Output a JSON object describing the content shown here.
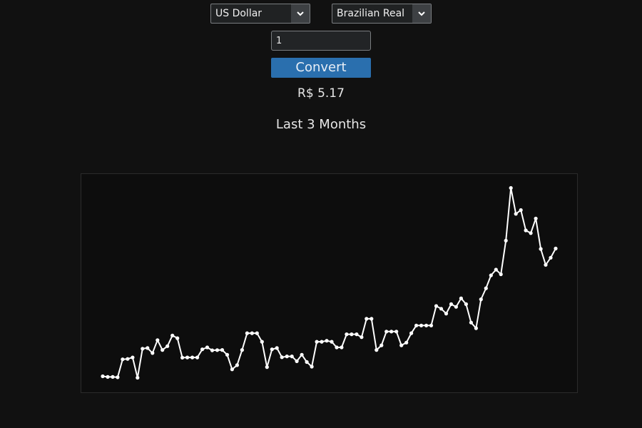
{
  "converter": {
    "from_currency": "US Dollar",
    "to_currency": "Brazilian Real",
    "amount": "1",
    "convert_label": "Convert",
    "result": "R$ 5.17",
    "icons": {
      "dropdown": "chevron-down-icon"
    }
  },
  "chart": {
    "heading": "Last 3 Months",
    "line_color": "#ffffff"
  },
  "chart_data": {
    "type": "line",
    "title": "Last 3 Months",
    "xlabel": "",
    "ylabel": "",
    "grid": false,
    "ylim": [
      0,
      100
    ],
    "series": [
      {
        "values": [
          5.3,
          5.0,
          5.0,
          4.8,
          13.4,
          13.6,
          14.3,
          4.6,
          18.5,
          18.8,
          16.4,
          22.6,
          17.9,
          19.7,
          24.8,
          23.5,
          14.2,
          14.3,
          14.3,
          14.3,
          18.2,
          19.1,
          17.7,
          17.8,
          17.9,
          15.6,
          8.6,
          10.6,
          17.9,
          25.9,
          25.9,
          25.9,
          21.8,
          9.7,
          18.2,
          18.8,
          14.4,
          14.8,
          14.8,
          12.5,
          15.6,
          12.1,
          9.9,
          21.8,
          21.8,
          22.3,
          21.8,
          19.1,
          19.1,
          25.4,
          25.4,
          25.4,
          24.0,
          32.8,
          32.8,
          17.9,
          20.1,
          26.7,
          26.7,
          26.7,
          20.1,
          21.4,
          25.9,
          29.6,
          29.6,
          29.6,
          29.6,
          38.9,
          37.6,
          35.3,
          39.8,
          38.5,
          42.6,
          39.8,
          31.0,
          28.3,
          42.1,
          47.4,
          53.6,
          56.3,
          54.1,
          70.2,
          95.4,
          83.0,
          84.8,
          75.1,
          73.8,
          80.8,
          66.2,
          58.6,
          62.0,
          66.4
        ]
      }
    ]
  }
}
